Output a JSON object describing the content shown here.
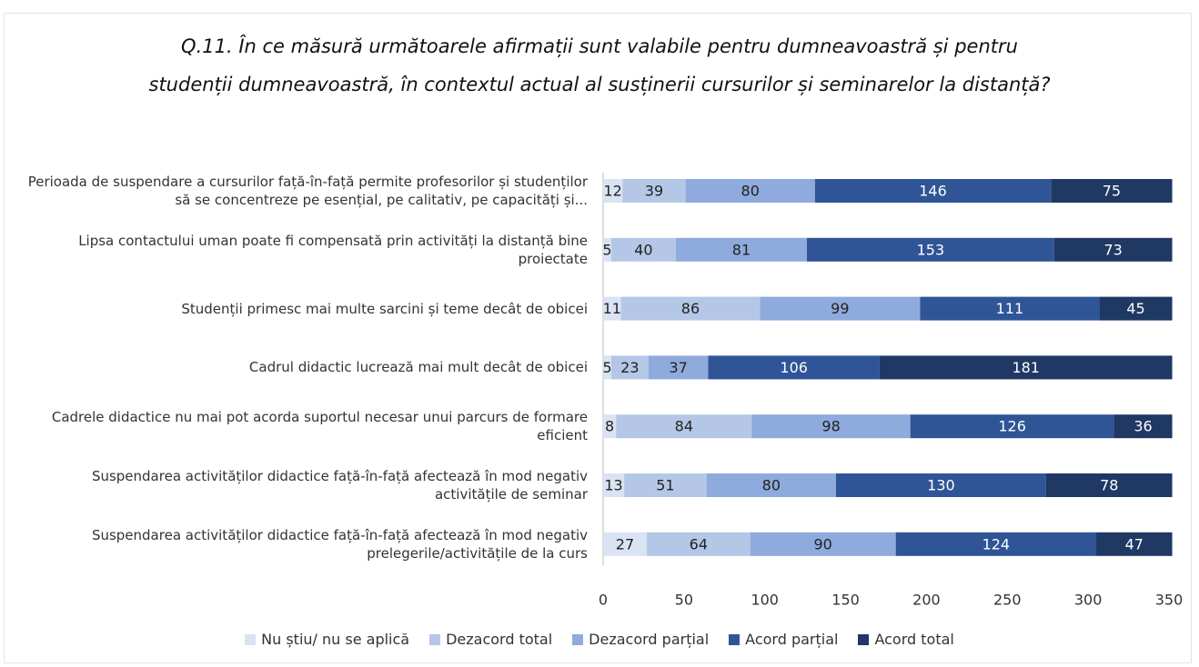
{
  "chart_data": {
    "type": "stacked-bar-horizontal",
    "title": "Q.11. În ce măsură următoarele afirmații sunt valabile pentru dumneavoastră și pentru studenții dumneavoastră, în contextul actual al susținerii cursurilor și seminarelor la distanță?",
    "categories": [
      "Perioada de suspendare a cursurilor față-în-față permite profesorilor și studenților să se concentreze pe esențial, pe calitativ, pe capacități și...",
      "Lipsa contactului uman poate fi compensată prin activități la distanță bine proiectate",
      "Studenții primesc mai multe sarcini și teme decât de obicei",
      "Cadrul didactic lucrează mai mult decât de obicei",
      "Cadrele didactice nu mai pot acorda suportul necesar unui parcurs de formare eficient",
      "Suspendarea activităților didactice față-în-față afectează în mod negativ activitățile de seminar",
      "Suspendarea activităților didactice față-în-față afectează în mod negativ prelegerile/activitățile de la curs"
    ],
    "series": [
      {
        "name": "Nu știu/ nu se aplică",
        "color": "#dae3f3",
        "values": [
          12,
          5,
          11,
          5,
          8,
          13,
          27
        ]
      },
      {
        "name": "Dezacord total",
        "color": "#b4c7e7",
        "values": [
          39,
          40,
          86,
          23,
          84,
          51,
          64
        ]
      },
      {
        "name": "Dezacord parțial",
        "color": "#8faadc",
        "values": [
          80,
          81,
          99,
          37,
          98,
          80,
          90
        ]
      },
      {
        "name": "Acord parțial",
        "color": "#2f5597",
        "values": [
          146,
          153,
          111,
          106,
          126,
          130,
          124
        ]
      },
      {
        "name": "Acord total",
        "color": "#1f3864",
        "values": [
          75,
          73,
          45,
          181,
          36,
          78,
          47
        ]
      }
    ],
    "xlim": [
      0,
      350
    ],
    "xticks": [
      0,
      50,
      100,
      150,
      200,
      250,
      300,
      350
    ],
    "legend": "bottom"
  }
}
